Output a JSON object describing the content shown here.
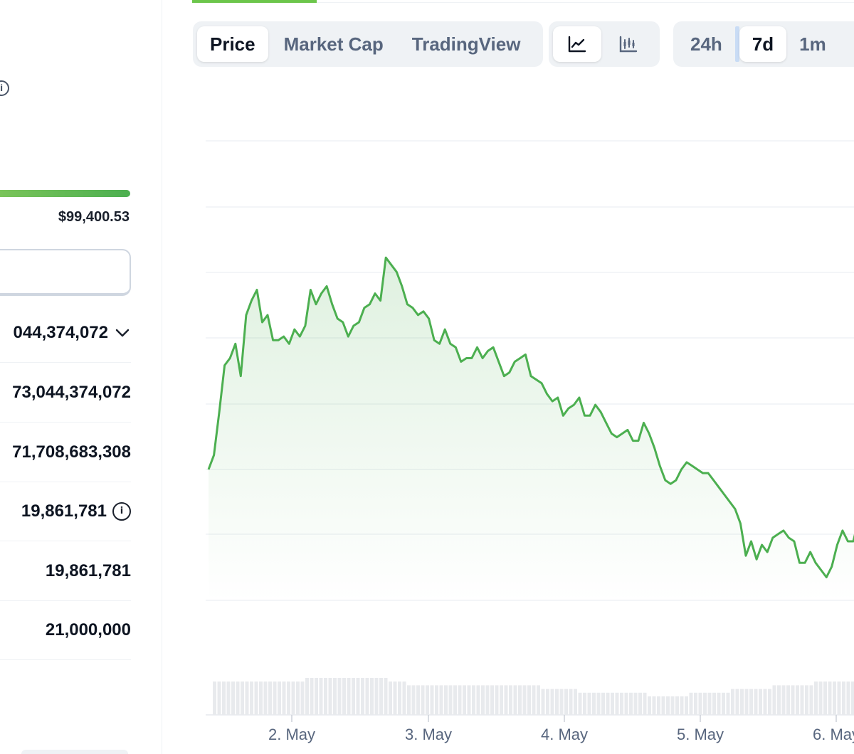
{
  "stats": {
    "range_high": "$99,400.53",
    "rows": [
      {
        "value": "044,374,072",
        "has_chevron": true
      },
      {
        "value": "73,044,374,072"
      },
      {
        "value": "71,708,683,308"
      },
      {
        "value": "19,861,781",
        "has_info": true
      },
      {
        "value": "19,861,781"
      },
      {
        "value": "21,000,000"
      }
    ]
  },
  "chart_controls": {
    "type_tabs": [
      "Price",
      "Market Cap",
      "TradingView"
    ],
    "active_type_tab": "Price",
    "view_toggles": [
      "line-chart-icon",
      "candlestick-chart-icon"
    ],
    "active_view": "line-chart-icon",
    "ranges": [
      "24h",
      "7d",
      "1m"
    ],
    "active_range": "7d"
  },
  "chart_data": {
    "type": "area",
    "title": "",
    "xlabel": "",
    "ylabel": "",
    "x_ticks": [
      "2. May",
      "3. May",
      "4. May",
      "5. May",
      "6. May"
    ],
    "grid": true,
    "line_color": "#4caf50",
    "series": [
      {
        "values": [
          50,
          54,
          66,
          79,
          81,
          85,
          76,
          93,
          97,
          100,
          91,
          93,
          86,
          86,
          87,
          85,
          89,
          87,
          90,
          100,
          96,
          99,
          101,
          96,
          92,
          91,
          87,
          90,
          91,
          95,
          96,
          99,
          97,
          109,
          107,
          105,
          101,
          96,
          95,
          93,
          94,
          92,
          86,
          85,
          89,
          85,
          84,
          80,
          81,
          81,
          84,
          81,
          83,
          84,
          80,
          76,
          77,
          80,
          81,
          82,
          76,
          75,
          74,
          71,
          69,
          70,
          65,
          67,
          68,
          70,
          65,
          65,
          68,
          66,
          63,
          60,
          59,
          60,
          61,
          58,
          58,
          63,
          60,
          56,
          51,
          47,
          46,
          47,
          50,
          52,
          51,
          50,
          49,
          49,
          47,
          45,
          43,
          41,
          39,
          35,
          26,
          30,
          25,
          29,
          27,
          31,
          32,
          33,
          31,
          30,
          24,
          24,
          27,
          24,
          22,
          20,
          23,
          29,
          33,
          30,
          30,
          36,
          42,
          36,
          33,
          39
        ]
      }
    ],
    "volume": [
      9,
      9,
      9,
      9,
      9,
      9,
      9,
      9,
      9,
      9,
      9,
      9,
      9,
      9,
      9,
      9,
      9,
      9,
      9,
      9,
      10,
      10,
      10,
      10,
      10,
      10,
      10,
      10,
      10,
      10,
      10,
      10,
      10,
      10,
      10,
      10,
      10,
      10,
      9,
      9,
      9,
      9,
      8,
      8,
      8,
      8,
      8,
      8,
      8,
      8,
      8,
      8,
      8,
      8,
      8,
      8,
      8,
      8,
      8,
      8,
      8,
      8,
      8,
      8,
      8,
      8,
      8,
      8,
      8,
      8,
      8,
      7,
      7,
      7,
      7,
      7,
      7,
      7,
      7,
      6,
      6,
      6,
      6,
      6,
      6,
      6,
      6,
      6,
      6,
      6,
      6,
      6,
      6,
      6,
      5,
      5,
      5,
      5,
      5,
      5,
      5,
      5,
      5,
      6,
      6,
      6,
      6,
      6,
      6,
      6,
      6,
      6,
      7,
      7,
      7,
      7,
      7,
      7,
      7,
      7,
      7,
      8,
      8,
      8,
      8,
      8,
      8,
      8,
      8,
      8,
      9,
      9,
      9,
      9,
      9,
      9,
      9,
      9,
      9,
      9
    ]
  }
}
